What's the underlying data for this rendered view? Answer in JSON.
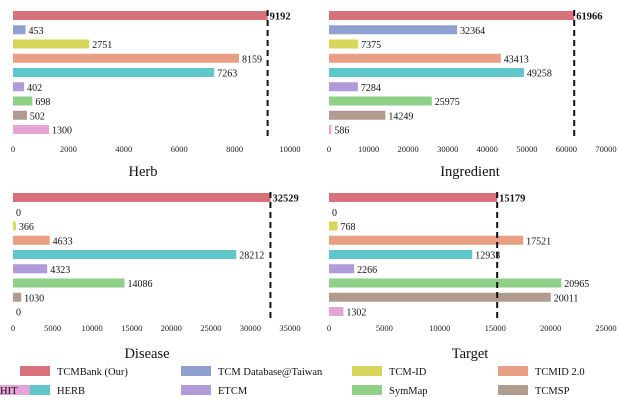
{
  "colors": {
    "TCMBank (Our)": "#d9717c",
    "TCM Database@Taiwan": "#8e9fd0",
    "TCM-ID": "#d5d65a",
    "TCMID  2.0": "#e99f84",
    "HERB": "#5fc6cc",
    "ETCM": "#b09ad8",
    "SymMap": "#8fcf88",
    "TCMSP": "#b09b8c",
    "HIT": "#e6a4d6"
  },
  "legend": {
    "entries": [
      "TCMBank (Our)",
      "TCM Database@Taiwan",
      "TCM-ID",
      "TCMID  2.0",
      "HERB",
      "ETCM",
      "SymMap",
      "TCMSP",
      "HIT"
    ]
  },
  "chart_data": [
    {
      "type": "bar",
      "orientation": "horizontal",
      "title": "Herb",
      "categories": [
        "TCMBank (Our)",
        "TCM Database@Taiwan",
        "TCM-ID",
        "TCMID  2.0",
        "HERB",
        "ETCM",
        "SymMap",
        "TCMSP",
        "HIT"
      ],
      "values": [
        9192,
        453,
        2751,
        8159,
        7263,
        402,
        698,
        502,
        1300
      ],
      "value_labels": [
        "9192",
        "453",
        "2751",
        "8159",
        "7263",
        "402",
        "698",
        "502",
        "1300"
      ],
      "xlim": [
        0,
        10000
      ],
      "xticks": [
        0,
        2000,
        4000,
        6000,
        8000,
        10000
      ],
      "xtick_labels": [
        "0",
        "2000",
        "4000",
        "6000",
        "8000",
        "10000"
      ],
      "reference_line": 9192
    },
    {
      "type": "bar",
      "orientation": "horizontal",
      "title": "Ingredient",
      "categories": [
        "TCMBank (Our)",
        "TCM Database@Taiwan",
        "TCM-ID",
        "TCMID  2.0",
        "HERB",
        "ETCM",
        "SymMap",
        "TCMSP",
        "HIT"
      ],
      "values": [
        61966,
        32364,
        7375,
        43413,
        49258,
        7284,
        25975,
        14249,
        586
      ],
      "value_labels": [
        "61966",
        "32364",
        "7375",
        "43413",
        "49258",
        "7284",
        "25975",
        "14249",
        "586"
      ],
      "xlim": [
        0,
        70000
      ],
      "xticks": [
        0,
        10000,
        20000,
        30000,
        40000,
        50000,
        60000,
        70000
      ],
      "xtick_labels": [
        "0",
        "10000",
        "20000",
        "30000",
        "40000",
        "50000",
        "60000",
        "70000"
      ],
      "reference_line": 61966
    },
    {
      "type": "bar",
      "orientation": "horizontal",
      "title": "Disease",
      "categories": [
        "TCMBank (Our)",
        "TCM Database@Taiwan",
        "TCM-ID",
        "TCMID  2.0",
        "HERB",
        "ETCM",
        "SymMap",
        "TCMSP",
        "HIT"
      ],
      "values": [
        32529,
        0,
        366,
        4633,
        28212,
        4323,
        14086,
        1030,
        0
      ],
      "value_labels": [
        "32529",
        "0",
        "366",
        "4633",
        "28212",
        "4323",
        "14086",
        "1030",
        "0"
      ],
      "xlim": [
        0,
        35000
      ],
      "xticks": [
        0,
        5000,
        10000,
        15000,
        20000,
        25000,
        30000,
        35000
      ],
      "xtick_labels": [
        "0",
        "5000",
        "10000",
        "15000",
        "20000",
        "25000",
        "30000",
        "35000"
      ],
      "reference_line": 32529
    },
    {
      "type": "bar",
      "orientation": "horizontal",
      "title": "Target",
      "categories": [
        "TCMBank (Our)",
        "TCM Database@Taiwan",
        "TCM-ID",
        "TCMID  2.0",
        "HERB",
        "ETCM",
        "SymMap",
        "TCMSP",
        "HIT"
      ],
      "values": [
        15179,
        0,
        768,
        17521,
        12933,
        2266,
        20965,
        20011,
        1302
      ],
      "value_labels": [
        "15179",
        "0",
        "768",
        "17521",
        "12933",
        "2266",
        "20965",
        "20011",
        "1302"
      ],
      "xlim": [
        0,
        25000
      ],
      "xticks": [
        0,
        5000,
        10000,
        15000,
        20000,
        25000
      ],
      "xtick_labels": [
        "0",
        "5000",
        "10000",
        "15000",
        "20000",
        "25000"
      ],
      "reference_line": 15179
    }
  ]
}
